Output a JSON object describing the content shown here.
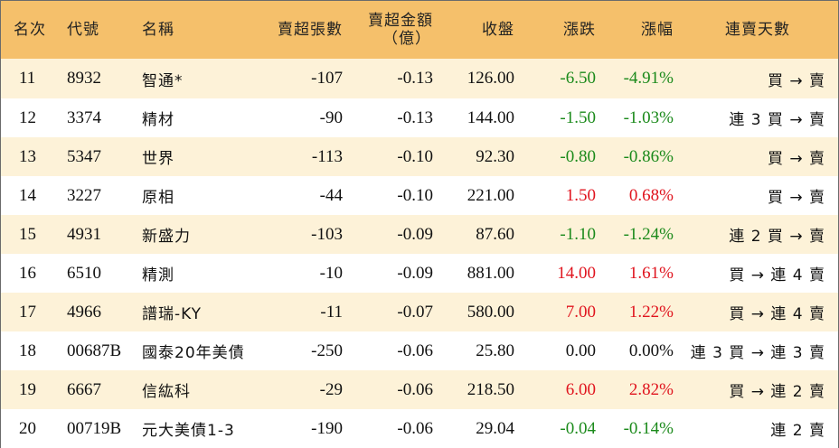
{
  "headers": {
    "rank": "名次",
    "code": "代號",
    "name": "名稱",
    "sell_shares": "賣超張數",
    "sell_amount_line1": "賣超金額",
    "sell_amount_line2": "（億）",
    "close": "收盤",
    "change": "漲跌",
    "pct": "漲幅",
    "streak": "連賣天數"
  },
  "rows": [
    {
      "rank": "11",
      "code": "8932",
      "name": "智通*",
      "sell_shares": "-107",
      "sell_amount": "-0.13",
      "close": "126.00",
      "change": "-6.50",
      "pct": "-4.91%",
      "trend": "neg",
      "streak": "買 → 賣"
    },
    {
      "rank": "12",
      "code": "3374",
      "name": "精材",
      "sell_shares": "-90",
      "sell_amount": "-0.13",
      "close": "144.00",
      "change": "-1.50",
      "pct": "-1.03%",
      "trend": "neg",
      "streak": "連 3 買 → 賣"
    },
    {
      "rank": "13",
      "code": "5347",
      "name": "世界",
      "sell_shares": "-113",
      "sell_amount": "-0.10",
      "close": "92.30",
      "change": "-0.80",
      "pct": "-0.86%",
      "trend": "neg",
      "streak": "買 → 賣"
    },
    {
      "rank": "14",
      "code": "3227",
      "name": "原相",
      "sell_shares": "-44",
      "sell_amount": "-0.10",
      "close": "221.00",
      "change": "1.50",
      "pct": "0.68%",
      "trend": "pos",
      "streak": "買 → 賣"
    },
    {
      "rank": "15",
      "code": "4931",
      "name": "新盛力",
      "sell_shares": "-103",
      "sell_amount": "-0.09",
      "close": "87.60",
      "change": "-1.10",
      "pct": "-1.24%",
      "trend": "neg",
      "streak": "連 2 買 → 賣"
    },
    {
      "rank": "16",
      "code": "6510",
      "name": "精測",
      "sell_shares": "-10",
      "sell_amount": "-0.09",
      "close": "881.00",
      "change": "14.00",
      "pct": "1.61%",
      "trend": "pos",
      "streak": "買 → 連 4 賣"
    },
    {
      "rank": "17",
      "code": "4966",
      "name": "譜瑞-KY",
      "sell_shares": "-11",
      "sell_amount": "-0.07",
      "close": "580.00",
      "change": "7.00",
      "pct": "1.22%",
      "trend": "pos",
      "streak": "買 → 連 4 賣"
    },
    {
      "rank": "18",
      "code": "00687B",
      "name": "國泰20年美債",
      "sell_shares": "-250",
      "sell_amount": "-0.06",
      "close": "25.80",
      "change": "0.00",
      "pct": "0.00%",
      "trend": "zero",
      "streak": "連 3 買 → 連 3 賣"
    },
    {
      "rank": "19",
      "code": "6667",
      "name": "信紘科",
      "sell_shares": "-29",
      "sell_amount": "-0.06",
      "close": "218.50",
      "change": "6.00",
      "pct": "2.82%",
      "trend": "pos",
      "streak": "買 → 連 2 賣"
    },
    {
      "rank": "20",
      "code": "00719B",
      "name": "元大美債1-3",
      "sell_shares": "-190",
      "sell_amount": "-0.06",
      "close": "29.04",
      "change": "-0.04",
      "pct": "-0.14%",
      "trend": "neg",
      "streak": "連 2 賣"
    }
  ],
  "colors": {
    "header_bg": "#f5c06b",
    "odd_row_bg": "#fdf2d8",
    "even_row_bg": "#ffffff",
    "up": "#e0141e",
    "down": "#1b8a1b"
  }
}
